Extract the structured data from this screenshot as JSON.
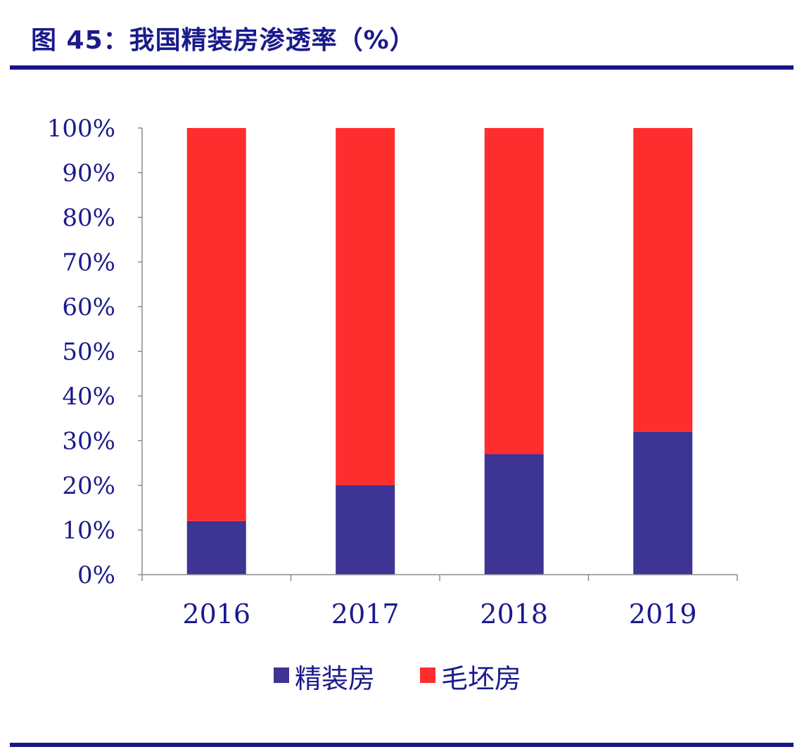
{
  "header": {
    "title": "图 45：我国精装房渗透率（%）"
  },
  "colors": {
    "accent": "#16168a",
    "text": "#1a1a8c",
    "axis": "#8c8c8c"
  },
  "chart_data": {
    "type": "bar",
    "stacked": true,
    "title": "",
    "xlabel": "",
    "ylabel": "",
    "ylim": [
      0,
      100
    ],
    "y_ticks": [
      "0%",
      "10%",
      "20%",
      "30%",
      "40%",
      "50%",
      "60%",
      "70%",
      "80%",
      "90%",
      "100%"
    ],
    "categories": [
      "2016",
      "2017",
      "2018",
      "2019"
    ],
    "series": [
      {
        "name": "精装房",
        "color": "#3d3494",
        "values": [
          12,
          20,
          27,
          32
        ]
      },
      {
        "name": "毛坯房",
        "color": "#ff2e2e",
        "values": [
          88,
          80,
          73,
          68
        ]
      }
    ],
    "legend_position": "bottom-center",
    "grid": false
  }
}
